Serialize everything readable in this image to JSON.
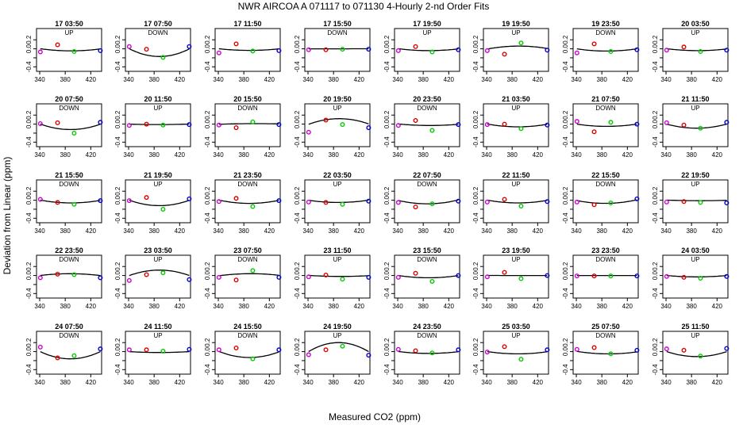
{
  "title": "NWR   AIRCOA A    071117 to 071130   4-Hourly 2-nd Order Fits",
  "xlabel": "Measured CO2 (ppm)",
  "ylabel": "Deviation from Linear (ppm)",
  "colors": {
    "background": "#ffffff",
    "axis": "#000000",
    "curve": "#000000",
    "low": "#cc00cc",
    "mid1": "#dd0000",
    "mid2": "#00cc00",
    "high": "#0000cc"
  },
  "chart_data": {
    "type": "scatter",
    "xlim": [
      335,
      437
    ],
    "ylim": [
      -0.5,
      0.45
    ],
    "xticks": [
      340,
      380,
      420
    ],
    "yticks": [
      -0.4,
      -0.2,
      0.0,
      0.2
    ],
    "ytick_labels": [
      "-0.4",
      "",
      "0.0",
      "0.2"
    ],
    "standards_x": [
      341,
      368,
      394,
      435
    ],
    "panels": [
      {
        "label": "17 03:50",
        "dir": "UP",
        "y": [
          -0.07,
          0.09,
          -0.06,
          -0.04
        ],
        "a": -0.045
      },
      {
        "label": "17 07:50",
        "dir": "DOWN",
        "y": [
          0.05,
          -0.01,
          -0.19,
          0.05
        ],
        "a": -0.17
      },
      {
        "label": "17 11:50",
        "dir": "",
        "y": [
          -0.09,
          0.11,
          -0.05,
          -0.04
        ],
        "a": -0.035
      },
      {
        "label": "17 15:50",
        "dir": "DOWN",
        "y": [
          -0.02,
          -0.02,
          -0.01,
          -0.01
        ],
        "a": 0.0
      },
      {
        "label": "17 19:50",
        "dir": "UP",
        "y": [
          -0.04,
          0.05,
          -0.07,
          -0.02
        ],
        "a": -0.04
      },
      {
        "label": "19 19:50",
        "dir": "UP",
        "y": [
          -0.04,
          -0.12,
          0.13,
          -0.03
        ],
        "a": 0.06
      },
      {
        "label": "19 23:50",
        "dir": "DOWN",
        "y": [
          -0.09,
          0.11,
          -0.06,
          -0.02
        ],
        "a": -0.05
      },
      {
        "label": "20 03:50",
        "dir": "UP",
        "y": [
          -0.03,
          0.04,
          -0.06,
          -0.03
        ],
        "a": -0.04
      },
      {
        "label": "20 07:50",
        "dir": "DOWN",
        "y": [
          0.01,
          0.03,
          -0.2,
          0.04
        ],
        "a": -0.12
      },
      {
        "label": "20 11:50",
        "dir": "UP",
        "y": [
          -0.03,
          0.0,
          -0.02,
          -0.01
        ],
        "a": -0.01
      },
      {
        "label": "20 15:50",
        "dir": "DOWN",
        "y": [
          -0.02,
          -0.08,
          0.05,
          -0.01
        ],
        "a": 0.01
      },
      {
        "label": "20 19:50",
        "dir": "UP",
        "y": [
          -0.18,
          0.09,
          -0.01,
          -0.08
        ],
        "a": 0.12
      },
      {
        "label": "20 23:50",
        "dir": "DOWN",
        "y": [
          -0.03,
          0.08,
          -0.14,
          -0.01
        ],
        "a": -0.03
      },
      {
        "label": "21 03:50",
        "dir": "UP",
        "y": [
          -0.01,
          0.0,
          -0.1,
          -0.02
        ],
        "a": -0.06
      },
      {
        "label": "21 07:50",
        "dir": "DOWN",
        "y": [
          0.06,
          -0.17,
          0.04,
          0.0
        ],
        "a": -0.05
      },
      {
        "label": "21 11:50",
        "dir": "UP",
        "y": [
          0.03,
          -0.02,
          -0.09,
          0.04
        ],
        "a": -0.09
      },
      {
        "label": "21 15:50",
        "dir": "DOWN",
        "y": [
          0.02,
          -0.05,
          -0.09,
          -0.01
        ],
        "a": -0.06
      },
      {
        "label": "21 19:50",
        "dir": "UP",
        "y": [
          -0.01,
          0.06,
          -0.2,
          0.03
        ],
        "a": -0.12
      },
      {
        "label": "21 23:50",
        "dir": "DOWN",
        "y": [
          -0.03,
          0.04,
          -0.14,
          -0.01
        ],
        "a": -0.07
      },
      {
        "label": "22 03:50",
        "dir": "UP",
        "y": [
          -0.04,
          -0.05,
          -0.09,
          -0.02
        ],
        "a": -0.05
      },
      {
        "label": "22 07:50",
        "dir": "DOWN",
        "y": [
          -0.05,
          -0.15,
          -0.08,
          -0.02
        ],
        "a": -0.08
      },
      {
        "label": "22 11:50",
        "dir": "UP",
        "y": [
          -0.04,
          0.02,
          -0.13,
          -0.03
        ],
        "a": -0.06
      },
      {
        "label": "22 15:50",
        "dir": "DOWN",
        "y": [
          -0.04,
          -0.1,
          -0.06,
          0.03
        ],
        "a": -0.07
      },
      {
        "label": "22 19:50",
        "dir": "UP",
        "y": [
          -0.04,
          -0.03,
          -0.05,
          -0.06
        ],
        "a": -0.01
      },
      {
        "label": "22 23:50",
        "dir": "DOWN",
        "y": [
          -0.05,
          0.03,
          0.02,
          -0.05
        ],
        "a": 0.04
      },
      {
        "label": "23 03:50",
        "dir": "UP",
        "y": [
          -0.11,
          0.02,
          0.06,
          -0.09
        ],
        "a": 0.12
      },
      {
        "label": "23 07:50",
        "dir": "DOWN",
        "y": [
          -0.04,
          -0.1,
          0.11,
          -0.04
        ],
        "a": 0.04
      },
      {
        "label": "23 11:50",
        "dir": "UP",
        "y": [
          -0.03,
          0.01,
          -0.08,
          -0.04
        ],
        "a": -0.02
      },
      {
        "label": "23 15:50",
        "dir": "DOWN",
        "y": [
          -0.04,
          0.05,
          -0.13,
          0.0
        ],
        "a": -0.05
      },
      {
        "label": "23 19:50",
        "dir": "UP",
        "y": [
          -0.03,
          0.07,
          -0.07,
          0.0
        ],
        "a": 0.0
      },
      {
        "label": "23 23:50",
        "dir": "DOWN",
        "y": [
          -0.01,
          -0.01,
          -0.01,
          -0.01
        ],
        "a": 0.0
      },
      {
        "label": "24 03:50",
        "dir": "UP",
        "y": [
          -0.02,
          -0.04,
          -0.06,
          -0.02
        ],
        "a": -0.03
      },
      {
        "label": "24 07:50",
        "dir": "DOWN",
        "y": [
          0.1,
          -0.14,
          -0.09,
          0.06
        ],
        "a": -0.16
      },
      {
        "label": "24 11:50",
        "dir": "UP",
        "y": [
          0.04,
          0.04,
          0.01,
          0.05
        ],
        "a": -0.02
      },
      {
        "label": "24 15:50",
        "dir": "DOWN",
        "y": [
          0.04,
          0.08,
          -0.16,
          0.04
        ],
        "a": -0.13
      },
      {
        "label": "24 19:50",
        "dir": "UP",
        "y": [
          -0.07,
          0.04,
          0.12,
          -0.08
        ],
        "a": 0.2
      },
      {
        "label": "24 23:50",
        "dir": "DOWN",
        "y": [
          0.05,
          0.02,
          -0.03,
          0.04
        ],
        "a": -0.04
      },
      {
        "label": "25 03:50",
        "dir": "UP",
        "y": [
          -0.01,
          0.11,
          -0.17,
          0.04
        ],
        "a": -0.05
      },
      {
        "label": "25 07:50",
        "dir": "DOWN",
        "y": [
          0.05,
          0.09,
          -0.05,
          0.03
        ],
        "a": -0.05
      },
      {
        "label": "25 11:50",
        "dir": "UP",
        "y": [
          0.06,
          0.03,
          -0.1,
          0.07
        ],
        "a": -0.11
      }
    ]
  }
}
